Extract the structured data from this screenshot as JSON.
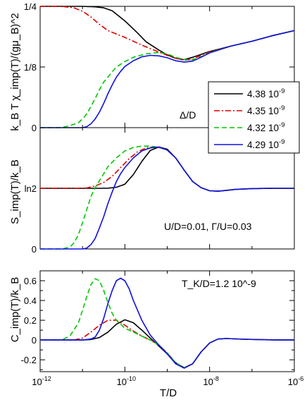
{
  "chart_data": [
    {
      "type": "line",
      "panel": "chi",
      "ylabel": "k_B T χ_imp(T)/(gμ_B)^2",
      "ylim": [
        0,
        0.25
      ],
      "yticks": [
        {
          "v": 0,
          "label": "0"
        },
        {
          "v": 0.125,
          "label": "1/8"
        },
        {
          "v": 0.25,
          "label": "1/4"
        }
      ],
      "xscale": "log10",
      "xlim": [
        -12,
        -6
      ],
      "annotation": "Δ/D",
      "legend": {
        "placement": "right",
        "entries": [
          {
            "label": "4.38 10^-9",
            "color": "#000000",
            "dash": "solid"
          },
          {
            "label": "4.35 10^-9",
            "color": "#e00000",
            "dash": "dashdot"
          },
          {
            "label": "4.32 10^-9",
            "color": "#00c800",
            "dash": "dashed"
          },
          {
            "label": "4.29 10^-9",
            "color": "#1010e0",
            "dash": "solid"
          }
        ]
      },
      "series": [
        {
          "name": "4.38 10^-9",
          "x": [
            -12,
            -11,
            -10.7,
            -10.5,
            -10.3,
            -10,
            -9.7,
            -9.5,
            -9.2,
            -9,
            -8.8,
            -8.6,
            -8.4,
            -8.2,
            -8,
            -7.5,
            -7,
            -6.5,
            -6
          ],
          "y": [
            0.25,
            0.25,
            0.249,
            0.247,
            0.241,
            0.22,
            0.195,
            0.177,
            0.16,
            0.15,
            0.143,
            0.14,
            0.145,
            0.151,
            0.157,
            0.168,
            0.178,
            0.19,
            0.2
          ]
        },
        {
          "name": "4.35 10^-9",
          "x": [
            -12,
            -11.5,
            -11.2,
            -11,
            -10.8,
            -10.6,
            -10.4,
            -10.2,
            -10,
            -9.8,
            -9.6,
            -9.4,
            -9.2,
            -9,
            -8.8,
            -8.6,
            -8.4,
            -8.2,
            -8,
            -7.5,
            -7,
            -6.5,
            -6
          ],
          "y": [
            0.25,
            0.25,
            0.247,
            0.24,
            0.228,
            0.213,
            0.2,
            0.193,
            0.186,
            0.178,
            0.17,
            0.163,
            0.156,
            0.149,
            0.143,
            0.139,
            0.141,
            0.149,
            0.156,
            0.168,
            0.178,
            0.19,
            0.2
          ]
        },
        {
          "name": "4.32 10^-9",
          "x": [
            -12,
            -11.5,
            -11.3,
            -11.1,
            -11,
            -10.9,
            -10.8,
            -10.7,
            -10.6,
            -10.5,
            -10.4,
            -10.3,
            -10.2,
            -10,
            -9.8,
            -9.5,
            -9.2,
            -9,
            -8.8,
            -8.6,
            -8.4,
            -8.2,
            -8,
            -7.5,
            -7,
            -6.5,
            -6
          ],
          "y": [
            0,
            0,
            0.004,
            0.01,
            0.018,
            0.028,
            0.044,
            0.06,
            0.078,
            0.094,
            0.104,
            0.115,
            0.125,
            0.136,
            0.145,
            0.152,
            0.155,
            0.152,
            0.145,
            0.14,
            0.14,
            0.146,
            0.155,
            0.168,
            0.178,
            0.19,
            0.2
          ]
        },
        {
          "name": "4.29 10^-9",
          "x": [
            -12,
            -11,
            -10.9,
            -10.8,
            -10.7,
            -10.6,
            -10.5,
            -10.4,
            -10.3,
            -10.2,
            -10.1,
            -10,
            -9.8,
            -9.6,
            -9.4,
            -9.2,
            -9,
            -8.8,
            -8.6,
            -8.4,
            -8.2,
            -8,
            -7.5,
            -7,
            -6.5,
            -6
          ],
          "y": [
            0,
            0,
            0.002,
            0.008,
            0.018,
            0.032,
            0.05,
            0.07,
            0.088,
            0.104,
            0.116,
            0.126,
            0.138,
            0.146,
            0.149,
            0.148,
            0.144,
            0.138,
            0.135,
            0.137,
            0.145,
            0.154,
            0.168,
            0.178,
            0.19,
            0.2
          ]
        }
      ]
    },
    {
      "type": "line",
      "panel": "entropy",
      "ylabel": "S_imp(T)/k_B",
      "ylim": [
        0,
        1.386
      ],
      "yticks": [
        {
          "v": 0,
          "label": "0"
        },
        {
          "v": 0.693,
          "label": "ln2"
        }
      ],
      "xscale": "log10",
      "xlim": [
        -12,
        -6
      ],
      "annotation": "U/D=0.01, Γ/U=0.03",
      "series": [
        {
          "name": "4.38 10^-9",
          "x": [
            -12,
            -11,
            -10.6,
            -10.4,
            -10.2,
            -10,
            -9.8,
            -9.6,
            -9.4,
            -9.2,
            -9,
            -8.8,
            -8.6,
            -8.4,
            -8.2,
            -8,
            -7.8,
            -7.6,
            -7.4,
            -7,
            -6.5,
            -6
          ],
          "y": [
            0.693,
            0.693,
            0.693,
            0.695,
            0.705,
            0.74,
            0.85,
            1.0,
            1.125,
            1.165,
            1.14,
            1.04,
            0.9,
            0.77,
            0.7,
            0.665,
            0.66,
            0.67,
            0.68,
            0.69,
            0.693,
            0.693
          ]
        },
        {
          "name": "4.35 10^-9",
          "x": [
            -12,
            -11,
            -10.9,
            -10.7,
            -10.5,
            -10.3,
            -10.1,
            -9.9,
            -9.7,
            -9.5,
            -9.3,
            -9.1,
            -9,
            -8.8,
            -8.6,
            -8.4,
            -8.2,
            -8,
            -7.8,
            -7.6,
            -7.4,
            -7,
            -6.5,
            -6
          ],
          "y": [
            0.693,
            0.693,
            0.697,
            0.72,
            0.76,
            0.83,
            0.93,
            1.03,
            1.11,
            1.155,
            1.165,
            1.15,
            1.13,
            1.04,
            0.9,
            0.77,
            0.7,
            0.665,
            0.66,
            0.67,
            0.68,
            0.69,
            0.693,
            0.693
          ]
        },
        {
          "name": "4.32 10^-9",
          "x": [
            -12,
            -11.5,
            -11.3,
            -11.2,
            -11.1,
            -11,
            -10.9,
            -10.8,
            -10.7,
            -10.6,
            -10.5,
            -10.4,
            -10.2,
            -10,
            -9.8,
            -9.6,
            -9.4,
            -9.2,
            -9,
            -8.8,
            -8.6,
            -8.4,
            -8.2,
            -8,
            -7.8,
            -7.6,
            -7.4,
            -7,
            -6.5,
            -6
          ],
          "y": [
            0,
            0,
            0.02,
            0.07,
            0.16,
            0.3,
            0.45,
            0.6,
            0.7,
            0.78,
            0.86,
            0.94,
            1.04,
            1.12,
            1.16,
            1.175,
            1.175,
            1.16,
            1.13,
            1.04,
            0.9,
            0.77,
            0.7,
            0.665,
            0.66,
            0.67,
            0.68,
            0.69,
            0.693,
            0.693
          ]
        },
        {
          "name": "4.29 10^-9",
          "x": [
            -12,
            -11,
            -10.9,
            -10.8,
            -10.7,
            -10.6,
            -10.5,
            -10.4,
            -10.3,
            -10.2,
            -10.1,
            -10,
            -9.8,
            -9.6,
            -9.4,
            -9.2,
            -9,
            -8.8,
            -8.6,
            -8.4,
            -8.2,
            -8,
            -7.8,
            -7.6,
            -7.4,
            -7,
            -6.5,
            -6
          ],
          "y": [
            0,
            0,
            0.01,
            0.05,
            0.12,
            0.24,
            0.37,
            0.52,
            0.65,
            0.77,
            0.86,
            0.93,
            1.04,
            1.12,
            1.155,
            1.165,
            1.13,
            1.04,
            0.9,
            0.77,
            0.7,
            0.665,
            0.66,
            0.67,
            0.68,
            0.69,
            0.693,
            0.693
          ]
        }
      ]
    },
    {
      "type": "line",
      "panel": "specific-heat",
      "ylabel": "C_imp(T)/k_B",
      "xlabel": "T/D",
      "ylim": [
        -0.32,
        0.7
      ],
      "yticks": [
        {
          "v": -0.2,
          "label": "-0.2"
        },
        {
          "v": 0,
          "label": "0"
        },
        {
          "v": 0.2,
          "label": "0.2"
        },
        {
          "v": 0.4,
          "label": "0.4"
        },
        {
          "v": 0.6,
          "label": "0.6"
        }
      ],
      "xscale": "log10",
      "xlim": [
        -12,
        -6
      ],
      "xticks": [
        {
          "v": -12,
          "exp": "-12"
        },
        {
          "v": -10,
          "exp": "-10"
        },
        {
          "v": -8,
          "exp": "-8"
        },
        {
          "v": -6,
          "exp": "-6"
        }
      ],
      "annotation": "T_K/D=1.2 10^-9",
      "series": [
        {
          "name": "4.38 10^-9",
          "x": [
            -12,
            -11,
            -10.8,
            -10.6,
            -10.4,
            -10.2,
            -10,
            -9.8,
            -9.6,
            -9.4,
            -9.2,
            -9,
            -8.8,
            -8.6,
            -8.4,
            -8.2,
            -8,
            -7.8,
            -7.6,
            -7.2,
            -6.5,
            -6
          ],
          "y": [
            0,
            0,
            0.005,
            0.025,
            0.08,
            0.16,
            0.205,
            0.175,
            0.1,
            0.02,
            -0.06,
            -0.14,
            -0.23,
            -0.28,
            -0.24,
            -0.12,
            -0.03,
            0.01,
            0.015,
            0.008,
            0.002,
            0
          ]
        },
        {
          "name": "4.35 10^-9",
          "x": [
            -12,
            -11.2,
            -11,
            -10.8,
            -10.6,
            -10.4,
            -10.2,
            -10,
            -9.8,
            -9.6,
            -9.4,
            -9.2,
            -9,
            -8.8,
            -8.6,
            -8.4,
            -8.2,
            -8,
            -7.8,
            -7.6,
            -7.2,
            -6.5,
            -6
          ],
          "y": [
            0,
            0,
            0.02,
            0.08,
            0.15,
            0.2,
            0.2,
            0.15,
            0.09,
            0.04,
            0.0,
            -0.05,
            -0.13,
            -0.23,
            -0.28,
            -0.24,
            -0.12,
            -0.03,
            0.01,
            0.015,
            0.008,
            0.002,
            0
          ]
        },
        {
          "name": "4.32 10^-9",
          "x": [
            -12,
            -11.5,
            -11.3,
            -11.1,
            -11,
            -10.9,
            -10.8,
            -10.7,
            -10.6,
            -10.5,
            -10.4,
            -10.3,
            -10.2,
            -10,
            -9.8,
            -9.6,
            -9.4,
            -9.2,
            -9,
            -8.8,
            -8.6,
            -8.4,
            -8.2,
            -8,
            -7.8,
            -7.6,
            -7.2,
            -6.5,
            -6
          ],
          "y": [
            0,
            0,
            0.04,
            0.17,
            0.3,
            0.44,
            0.56,
            0.62,
            0.6,
            0.5,
            0.38,
            0.27,
            0.2,
            0.12,
            0.08,
            0.04,
            0.0,
            -0.05,
            -0.13,
            -0.23,
            -0.28,
            -0.24,
            -0.12,
            -0.03,
            0.01,
            0.015,
            0.008,
            0.002,
            0
          ]
        },
        {
          "name": "4.29 10^-9",
          "x": [
            -12,
            -11,
            -10.8,
            -10.7,
            -10.6,
            -10.5,
            -10.4,
            -10.3,
            -10.2,
            -10.1,
            -10,
            -9.9,
            -9.8,
            -9.6,
            -9.4,
            -9.2,
            -9,
            -8.8,
            -8.6,
            -8.4,
            -8.2,
            -8,
            -7.8,
            -7.6,
            -7.2,
            -6.5,
            -6
          ],
          "y": [
            0,
            0,
            0.01,
            0.03,
            0.1,
            0.22,
            0.37,
            0.5,
            0.6,
            0.625,
            0.6,
            0.52,
            0.4,
            0.2,
            0.05,
            -0.05,
            -0.14,
            -0.24,
            -0.285,
            -0.24,
            -0.12,
            -0.03,
            0.01,
            0.015,
            0.008,
            0.002,
            0
          ]
        }
      ]
    }
  ]
}
